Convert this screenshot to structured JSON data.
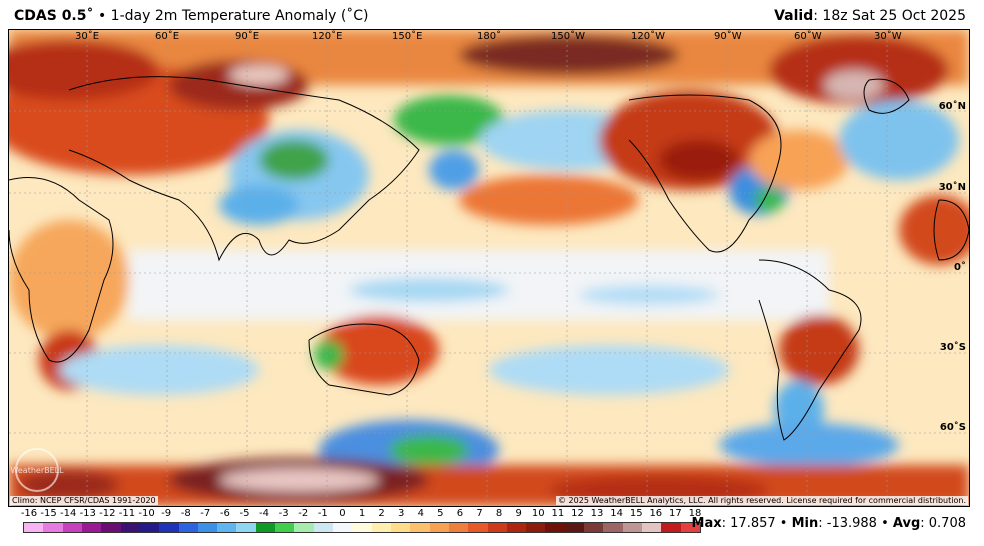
{
  "header": {
    "model": "CDAS 0.5˚",
    "separator": "•",
    "product": "1-day 2m Temperature Anomaly (˚C)",
    "valid_label": "Valid",
    "valid_time": ": 18z Sat 25 Oct 2025"
  },
  "map": {
    "lon_labels": [
      "30˚E",
      "60˚E",
      "90˚E",
      "120˚E",
      "150˚E",
      "180˚",
      "150˚W",
      "120˚W",
      "90˚W",
      "60˚W",
      "30˚W"
    ],
    "lat_labels": [
      "60˚N",
      "30˚N",
      "0˚",
      "30˚S",
      "60˚S"
    ],
    "climo_note": "Climo: NCEP CFSR/CDAS 1991-2020",
    "copyright": "© 2025 WeatherBELL Analytics, LLC. All rights reserved. License required for commercial distribution.",
    "watermark": "WeatherBELL"
  },
  "colorbar": {
    "labels": [
      "-16",
      "-15",
      "-14",
      "-13",
      "-12",
      "-11",
      "-10",
      "-9",
      "-8",
      "-7",
      "-6",
      "-5",
      "-4",
      "-3",
      "-2",
      "-1",
      "0",
      "1",
      "2",
      "3",
      "4",
      "5",
      "6",
      "7",
      "8",
      "9",
      "10",
      "11",
      "12",
      "13",
      "14",
      "15",
      "16",
      "17",
      "18"
    ],
    "colors": [
      "#f7b4f2",
      "#e77be0",
      "#c641bd",
      "#9b1a93",
      "#6b0e73",
      "#3a1273",
      "#251a8a",
      "#2033b8",
      "#2f62df",
      "#3d8fe8",
      "#5fb6ef",
      "#8fd6f3",
      "#0f9a28",
      "#3fcf4b",
      "#a6ecae",
      "#cde7f5",
      "#f4f8fc",
      "#fffbe0",
      "#fff0b0",
      "#ffdd8a",
      "#fcc16c",
      "#f7a152",
      "#ef7f3e",
      "#e55a28",
      "#cf3a18",
      "#ad2511",
      "#8d1b0c",
      "#6e1208",
      "#5c1713",
      "#7a3b38",
      "#9c6664",
      "#bf9693",
      "#e2c5c2",
      "#c21b1b",
      "#e54040"
    ]
  },
  "stats": {
    "max_label": "Max",
    "max_value": ": 17.857",
    "sep1": " • ",
    "min_label": "Min",
    "min_value": ": -13.988",
    "sep2": " • ",
    "avg_label": "Avg",
    "avg_value": ": 0.708"
  }
}
